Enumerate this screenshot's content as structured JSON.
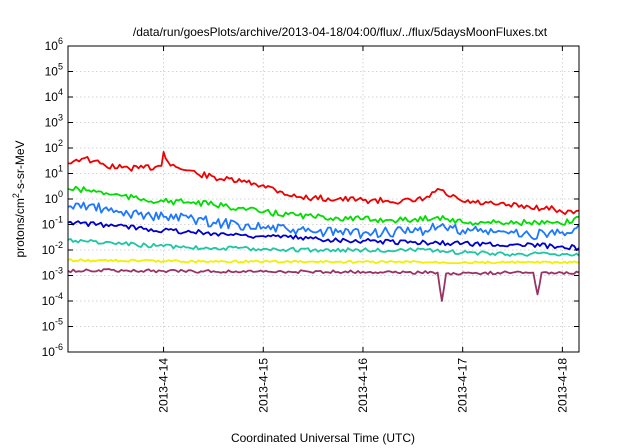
{
  "chart_data": {
    "type": "line",
    "title": "/data/run/goesPlots/archive/2013-04-18/04:00/flux/../flux/5daysMoonFluxes.txt",
    "xlabel": "Coordinated Universal Time (UTC)",
    "ylabel_parts": {
      "prefix": "protons/cm",
      "sup": "2",
      "suffix": "-s-sr-MeV"
    },
    "yscale": "log",
    "ylim": [
      1e-06,
      1000000.0
    ],
    "xlim": [
      "2013-04-13T01:00",
      "2013-04-18T04:00"
    ],
    "grid": true,
    "y_tick_labels": [
      {
        "value": 1e-06,
        "base": "10",
        "exp": "-6"
      },
      {
        "value": 1e-05,
        "base": "10",
        "exp": "-5"
      },
      {
        "value": 0.0001,
        "base": "10",
        "exp": "-4"
      },
      {
        "value": 0.001,
        "base": "10",
        "exp": "-3"
      },
      {
        "value": 0.01,
        "base": "10",
        "exp": "-2"
      },
      {
        "value": 0.1,
        "base": "10",
        "exp": "-1"
      },
      {
        "value": 1,
        "base": "10",
        "exp": "0"
      },
      {
        "value": 10.0,
        "base": "10",
        "exp": "1"
      },
      {
        "value": 100.0,
        "base": "10",
        "exp": "2"
      },
      {
        "value": 1000.0,
        "base": "10",
        "exp": "3"
      },
      {
        "value": 10000.0,
        "base": "10",
        "exp": "4"
      },
      {
        "value": 100000.0,
        "base": "10",
        "exp": "5"
      },
      {
        "value": 1000000.0,
        "base": "10",
        "exp": "6"
      }
    ],
    "x_ticks": [
      {
        "date": "2013-04-14T00:00",
        "label": "2013-4-14"
      },
      {
        "date": "2013-04-15T00:00",
        "label": "2013-4-15"
      },
      {
        "date": "2013-04-16T00:00",
        "label": "2013-4-16"
      },
      {
        "date": "2013-04-17T00:00",
        "label": "2013-4-17"
      },
      {
        "date": "2013-04-18T00:00",
        "label": "2013-4-18"
      }
    ],
    "series": [
      {
        "color": "#ee0000",
        "points": [
          [
            "2013-04-13T01:00",
            25
          ],
          [
            "2013-04-13T03:00",
            35
          ],
          [
            "2013-04-13T05:00",
            40
          ],
          [
            "2013-04-13T07:00",
            30
          ],
          [
            "2013-04-13T10:00",
            20
          ],
          [
            "2013-04-13T14:00",
            17
          ],
          [
            "2013-04-13T18:00",
            16
          ],
          [
            "2013-04-13T22:00",
            18
          ],
          [
            "2013-04-13T23:30",
            20
          ],
          [
            "2013-04-14T00:00",
            70
          ],
          [
            "2013-04-14T01:00",
            30
          ],
          [
            "2013-04-14T03:00",
            18
          ],
          [
            "2013-04-14T08:00",
            10
          ],
          [
            "2013-04-14T14:00",
            6
          ],
          [
            "2013-04-14T20:00",
            4.5
          ],
          [
            "2013-04-15T00:00",
            3.5
          ],
          [
            "2013-04-15T04:00",
            2
          ],
          [
            "2013-04-15T08:00",
            1.2
          ],
          [
            "2013-04-15T12:00",
            1.1
          ],
          [
            "2013-04-15T18:00",
            1.0
          ],
          [
            "2013-04-16T00:00",
            0.9
          ],
          [
            "2013-04-16T06:00",
            0.85
          ],
          [
            "2013-04-16T12:00",
            0.8
          ],
          [
            "2013-04-16T16:00",
            1.2
          ],
          [
            "2013-04-16T18:00",
            2.5
          ],
          [
            "2013-04-16T20:00",
            1.5
          ],
          [
            "2013-04-17T00:00",
            0.8
          ],
          [
            "2013-04-17T08:00",
            0.6
          ],
          [
            "2013-04-17T16:00",
            0.5
          ],
          [
            "2013-04-17T22:00",
            0.4
          ],
          [
            "2013-04-18T00:00",
            0.3
          ],
          [
            "2013-04-18T02:00",
            0.35
          ],
          [
            "2013-04-18T04:00",
            0.35
          ]
        ]
      },
      {
        "color": "#00dd00",
        "points": [
          [
            "2013-04-13T01:00",
            2.5
          ],
          [
            "2013-04-13T06:00",
            2.2
          ],
          [
            "2013-04-13T12:00",
            1.5
          ],
          [
            "2013-04-13T18:00",
            1.0
          ],
          [
            "2013-04-14T00:00",
            0.8
          ],
          [
            "2013-04-14T06:00",
            0.75
          ],
          [
            "2013-04-14T12:00",
            0.6
          ],
          [
            "2013-04-14T18:00",
            0.45
          ],
          [
            "2013-04-15T00:00",
            0.3
          ],
          [
            "2013-04-15T06:00",
            0.25
          ],
          [
            "2013-04-15T12:00",
            0.2
          ],
          [
            "2013-04-15T18:00",
            0.18
          ],
          [
            "2013-04-16T00:00",
            0.16
          ],
          [
            "2013-04-16T06:00",
            0.15
          ],
          [
            "2013-04-16T12:00",
            0.15
          ],
          [
            "2013-04-16T18:00",
            0.2
          ],
          [
            "2013-04-17T00:00",
            0.12
          ],
          [
            "2013-04-17T08:00",
            0.12
          ],
          [
            "2013-04-17T16:00",
            0.12
          ],
          [
            "2013-04-18T00:00",
            0.1
          ],
          [
            "2013-04-18T04:00",
            0.2
          ]
        ]
      },
      {
        "color": "#1e78ff",
        "points": [
          [
            "2013-04-13T01:00",
            0.5
          ],
          [
            "2013-04-13T06:00",
            0.55
          ],
          [
            "2013-04-13T12:00",
            0.3
          ],
          [
            "2013-04-13T18:00",
            0.25
          ],
          [
            "2013-04-14T00:00",
            0.2
          ],
          [
            "2013-04-14T06:00",
            0.18
          ],
          [
            "2013-04-14T12:00",
            0.12
          ],
          [
            "2013-04-14T18:00",
            0.1
          ],
          [
            "2013-04-15T00:00",
            0.08
          ],
          [
            "2013-04-15T06:00",
            0.06
          ],
          [
            "2013-04-15T12:00",
            0.05
          ],
          [
            "2013-04-15T18:00",
            0.05
          ],
          [
            "2013-04-16T00:00",
            0.045
          ],
          [
            "2013-04-16T06:00",
            0.05
          ],
          [
            "2013-04-16T12:00",
            0.05
          ],
          [
            "2013-04-16T18:00",
            0.08
          ],
          [
            "2013-04-17T00:00",
            0.06
          ],
          [
            "2013-04-17T08:00",
            0.05
          ],
          [
            "2013-04-17T16:00",
            0.04
          ],
          [
            "2013-04-18T00:00",
            0.05
          ],
          [
            "2013-04-18T04:00",
            0.1
          ]
        ]
      },
      {
        "color": "#0000cc",
        "points": [
          [
            "2013-04-13T01:00",
            0.12
          ],
          [
            "2013-04-13T12:00",
            0.09
          ],
          [
            "2013-04-14T00:00",
            0.06
          ],
          [
            "2013-04-14T12:00",
            0.045
          ],
          [
            "2013-04-15T00:00",
            0.035
          ],
          [
            "2013-04-15T12:00",
            0.028
          ],
          [
            "2013-04-16T00:00",
            0.023
          ],
          [
            "2013-04-16T12:00",
            0.02
          ],
          [
            "2013-04-17T00:00",
            0.018
          ],
          [
            "2013-04-17T12:00",
            0.016
          ],
          [
            "2013-04-18T00:00",
            0.014
          ],
          [
            "2013-04-18T04:00",
            0.012
          ]
        ]
      },
      {
        "color": "#1fc6a4",
        "points": [
          [
            "2013-04-13T01:00",
            0.025
          ],
          [
            "2013-04-13T12:00",
            0.018
          ],
          [
            "2013-04-14T00:00",
            0.014
          ],
          [
            "2013-04-14T12:00",
            0.012
          ],
          [
            "2013-04-15T00:00",
            0.011
          ],
          [
            "2013-04-15T12:00",
            0.01
          ],
          [
            "2013-04-16T00:00",
            0.01
          ],
          [
            "2013-04-16T12:00",
            0.01
          ],
          [
            "2013-04-17T00:00",
            0.008
          ],
          [
            "2013-04-17T12:00",
            0.007
          ],
          [
            "2013-04-18T00:00",
            0.007
          ],
          [
            "2013-04-18T04:00",
            0.006
          ]
        ]
      },
      {
        "color": "#f0f000",
        "points": [
          [
            "2013-04-13T01:00",
            0.004
          ],
          [
            "2013-04-14T00:00",
            0.0037
          ],
          [
            "2013-04-15T00:00",
            0.0035
          ],
          [
            "2013-04-16T00:00",
            0.0034
          ],
          [
            "2013-04-17T00:00",
            0.0033
          ],
          [
            "2013-04-18T00:00",
            0.0032
          ],
          [
            "2013-04-18T04:00",
            0.0032
          ]
        ]
      },
      {
        "color": "#993366",
        "points": [
          [
            "2013-04-13T01:00",
            0.0015
          ],
          [
            "2013-04-13T06:00",
            0.0016
          ],
          [
            "2013-04-14T00:00",
            0.0015
          ],
          [
            "2013-04-15T00:00",
            0.0014
          ],
          [
            "2013-04-16T00:00",
            0.0014
          ],
          [
            "2013-04-16T18:00",
            0.0013
          ],
          [
            "2013-04-16T19:00",
            0.0001
          ],
          [
            "2013-04-16T20:00",
            0.0012
          ],
          [
            "2013-04-17T12:00",
            0.0013
          ],
          [
            "2013-04-17T17:00",
            0.0013
          ],
          [
            "2013-04-17T18:00",
            0.00018
          ],
          [
            "2013-04-17T19:00",
            0.0013
          ],
          [
            "2013-04-18T04:00",
            0.0013
          ]
        ]
      }
    ]
  }
}
